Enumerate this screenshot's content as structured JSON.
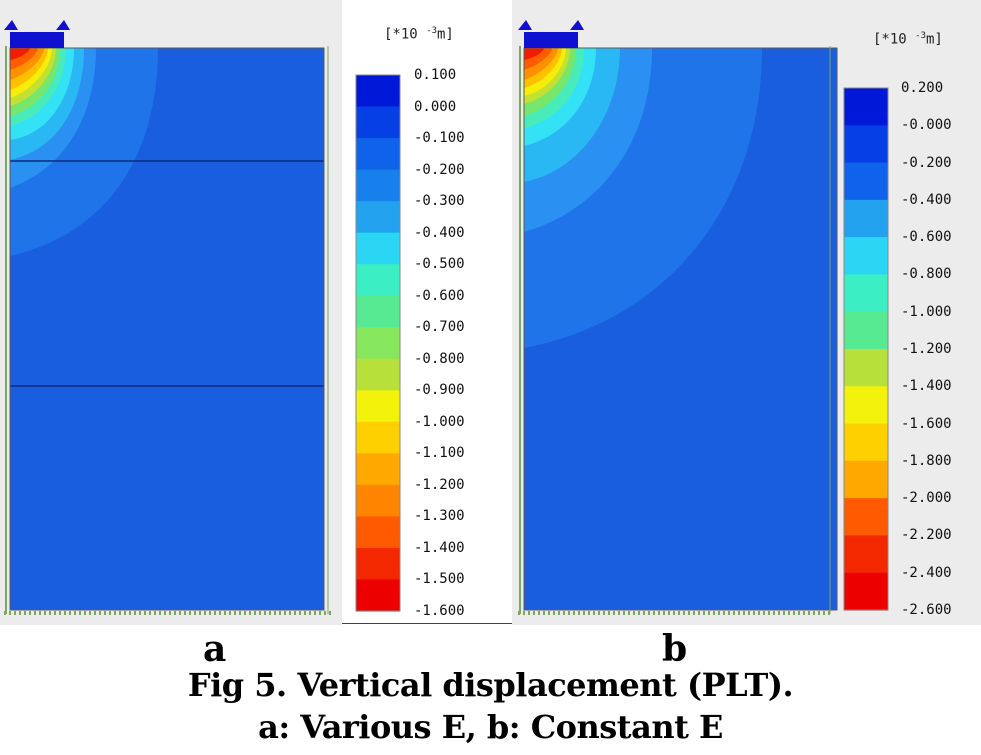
{
  "figure": {
    "caption_line1": "Fig 5. Vertical displacement (PLT).",
    "caption_line2": "a: Various E, b: Constant E"
  },
  "colors": {
    "background_deep_blue": "#1a5ee0",
    "band_palette": [
      "#0018d8",
      "#0640e4",
      "#0f62ea",
      "#1880ec",
      "#22a2ee",
      "#2ad6f4",
      "#3ceec4",
      "#58ea92",
      "#86e65c",
      "#b8e03a",
      "#f2f20a",
      "#ffd000",
      "#ffa800",
      "#ff8400",
      "#ff5a00",
      "#f42800",
      "#ec0000"
    ]
  },
  "panels": [
    {
      "label": "a",
      "unit_prefix": "[*10 ",
      "unit_exp": "-3",
      "unit_suffix": "m]",
      "ticks": [
        "0.100",
        "0.000",
        "-0.100",
        "-0.200",
        "-0.300",
        "-0.400",
        "-0.500",
        "-0.600",
        "-0.700",
        "-0.800",
        "-0.900",
        "-1.000",
        "-1.100",
        "-1.200",
        "-1.300",
        "-1.400",
        "-1.500",
        "-1.600"
      ]
    },
    {
      "label": "b",
      "unit_prefix": "[*10 ",
      "unit_exp": "-3",
      "unit_suffix": "m]",
      "ticks": [
        "0.200",
        "-0.000",
        "-0.200",
        "-0.400",
        "-0.600",
        "-0.800",
        "-1.000",
        "-1.200",
        "-1.400",
        "-1.600",
        "-1.800",
        "-2.000",
        "-2.200",
        "-2.400",
        "-2.600"
      ]
    }
  ]
}
